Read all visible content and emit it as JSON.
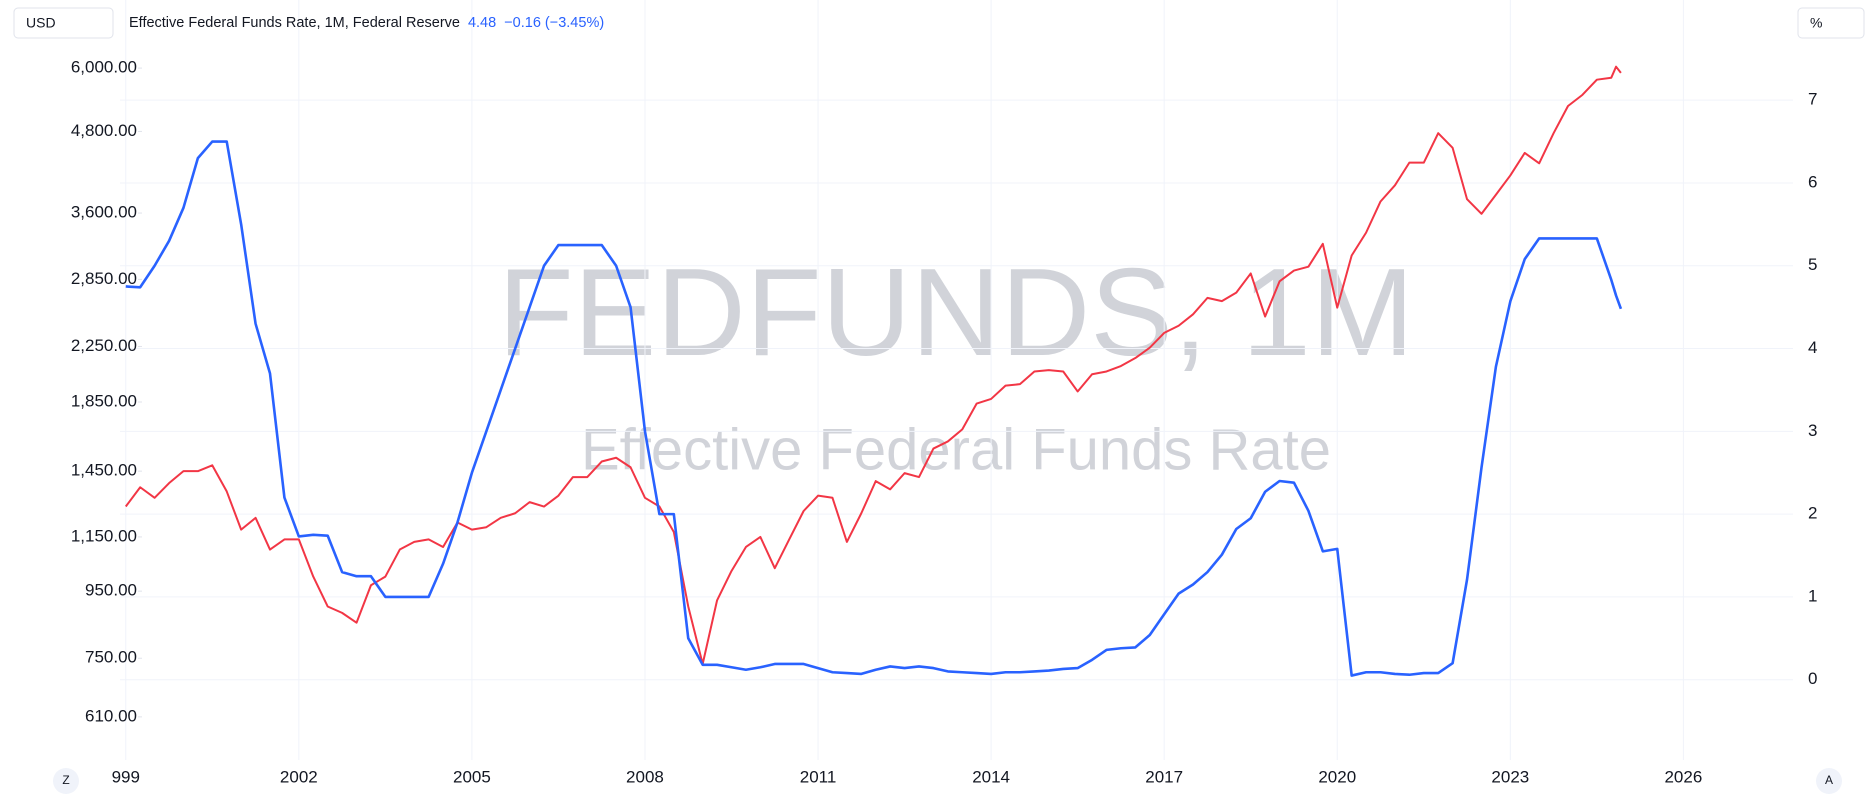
{
  "chart_data": {
    "type": "line",
    "currency": "USD",
    "unit": "%",
    "watermark": "FEDFUNDS, 1M",
    "watermark_subtitle": "Effective Federal Funds Rate",
    "change": "−0.16 (−3.45%)",
    "scale_buttons": {
      "left": "Z",
      "right": "A"
    },
    "x": [
      1999.0,
      1999.25,
      1999.5,
      1999.75,
      2000.0,
      2000.25,
      2000.5,
      2000.75,
      2001.0,
      2001.25,
      2001.5,
      2001.75,
      2002.0,
      2002.25,
      2002.5,
      2002.75,
      2003.0,
      2003.25,
      2003.5,
      2003.75,
      2004.0,
      2004.25,
      2004.5,
      2004.75,
      2005.0,
      2005.25,
      2005.5,
      2005.75,
      2006.0,
      2006.25,
      2006.5,
      2006.75,
      2007.0,
      2007.25,
      2007.5,
      2007.75,
      2008.0,
      2008.25,
      2008.5,
      2008.75,
      2009.0,
      2009.25,
      2009.5,
      2009.75,
      2010.0,
      2010.25,
      2010.5,
      2010.75,
      2011.0,
      2011.25,
      2011.5,
      2011.75,
      2012.0,
      2012.25,
      2012.5,
      2012.75,
      2013.0,
      2013.25,
      2013.5,
      2013.75,
      2014.0,
      2014.25,
      2014.5,
      2014.75,
      2015.0,
      2015.25,
      2015.5,
      2015.75,
      2016.0,
      2016.25,
      2016.5,
      2016.75,
      2017.0,
      2017.25,
      2017.5,
      2017.75,
      2018.0,
      2018.25,
      2018.5,
      2018.75,
      2019.0,
      2019.25,
      2019.5,
      2019.75,
      2020.0,
      2020.25,
      2020.5,
      2020.75,
      2021.0,
      2021.25,
      2021.5,
      2021.75,
      2022.0,
      2022.25,
      2022.5,
      2022.75,
      2023.0,
      2023.25,
      2023.5,
      2023.75,
      2024.0,
      2024.25,
      2024.5,
      2024.75,
      2024.833,
      2024.917
    ],
    "series": [
      {
        "color": "#f23645",
        "axis": "y",
        "values": [
          1280,
          1370,
          1320,
          1390,
          1450,
          1450,
          1480,
          1350,
          1180,
          1230,
          1100,
          1140,
          1140,
          1000,
          900,
          880,
          850,
          970,
          1000,
          1100,
          1130,
          1140,
          1110,
          1210,
          1180,
          1190,
          1230,
          1250,
          1300,
          1280,
          1330,
          1420,
          1420,
          1500,
          1520,
          1470,
          1320,
          1280,
          1170,
          900,
          735,
          920,
          1020,
          1110,
          1150,
          1030,
          1140,
          1260,
          1330,
          1320,
          1130,
          1250,
          1400,
          1360,
          1440,
          1420,
          1570,
          1610,
          1680,
          1840,
          1870,
          1960,
          1970,
          2060,
          2070,
          2060,
          1920,
          2040,
          2060,
          2100,
          2160,
          2240,
          2360,
          2420,
          2520,
          2670,
          2640,
          2720,
          2910,
          2500,
          2830,
          2940,
          2980,
          3230,
          2580,
          3100,
          3360,
          3750,
          3970,
          4300,
          4300,
          4770,
          4530,
          3780,
          3590,
          3840,
          4110,
          4450,
          4290,
          4770,
          5250,
          5460,
          5760,
          5800,
          6030,
          5900
        ]
      },
      {
        "name": "Effective Federal Funds Rate, 1M, Federal Reserve",
        "color": "#2962ff",
        "axis": "y2",
        "values": [
          4.75,
          4.74,
          5.0,
          5.3,
          5.7,
          6.3,
          6.5,
          6.5,
          5.5,
          4.3,
          3.7,
          2.2,
          1.73,
          1.75,
          1.74,
          1.3,
          1.25,
          1.25,
          1.0,
          1.0,
          1.0,
          1.0,
          1.4,
          1.9,
          2.5,
          3.0,
          3.5,
          4.0,
          4.5,
          5.0,
          5.25,
          5.25,
          5.25,
          5.25,
          5.0,
          4.5,
          3.0,
          2.0,
          2.0,
          0.5,
          0.18,
          0.18,
          0.15,
          0.12,
          0.15,
          0.19,
          0.19,
          0.19,
          0.14,
          0.09,
          0.08,
          0.07,
          0.12,
          0.16,
          0.14,
          0.16,
          0.14,
          0.1,
          0.09,
          0.08,
          0.07,
          0.09,
          0.09,
          0.1,
          0.11,
          0.13,
          0.14,
          0.24,
          0.36,
          0.38,
          0.39,
          0.54,
          0.79,
          1.04,
          1.15,
          1.3,
          1.51,
          1.82,
          1.95,
          2.27,
          2.4,
          2.38,
          2.04,
          1.55,
          1.58,
          0.05,
          0.09,
          0.09,
          0.07,
          0.06,
          0.08,
          0.08,
          0.2,
          1.21,
          2.56,
          3.78,
          4.57,
          5.08,
          5.33,
          5.33,
          5.33,
          5.33,
          5.33,
          4.83,
          4.64,
          4.48
        ]
      }
    ],
    "xlim": [
      1998.9,
      2027.9
    ],
    "xticks": [
      {
        "value": 1999,
        "label": "999"
      },
      2002,
      2005,
      2008,
      2011,
      2014,
      2017,
      2020,
      2023,
      2026
    ],
    "ylim": [
      524,
      7627
    ],
    "log": true,
    "yticks": [
      {
        "value": 610,
        "label": "610.00"
      },
      {
        "value": 750,
        "label": "750.00"
      },
      {
        "value": 950,
        "label": "950.00"
      },
      {
        "value": 1150,
        "label": "1,150.00"
      },
      {
        "value": 1450,
        "label": "1,450.00"
      },
      {
        "value": 1850,
        "label": "1,850.00"
      },
      {
        "value": 2250,
        "label": "2,250.00"
      },
      {
        "value": 2850,
        "label": "2,850.00"
      },
      {
        "value": 3600,
        "label": "3,600.00"
      },
      {
        "value": 4800,
        "label": "4,800.00"
      },
      {
        "value": 6000,
        "label": "6,000.00"
      }
    ],
    "y2lim": [
      -0.97,
      8.21
    ],
    "y2ticks": [
      0,
      1,
      2,
      3,
      4,
      5,
      6,
      7
    ],
    "grid": true
  }
}
